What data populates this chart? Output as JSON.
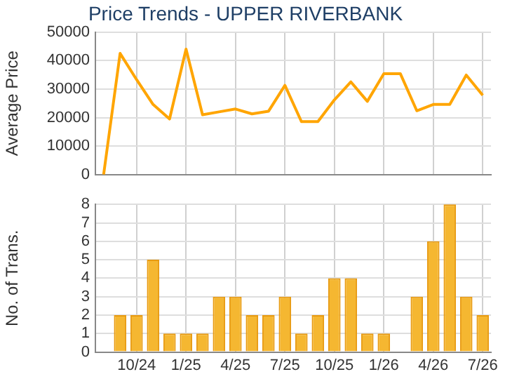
{
  "chart_data": [
    {
      "type": "line",
      "title": "Price Trends - UPPER RIVERBANK",
      "ylabel": "Average Price",
      "categories": [
        null,
        null,
        null,
        null,
        null,
        null,
        null,
        null,
        null,
        null,
        null,
        null,
        null,
        null,
        null,
        null,
        null,
        null,
        null,
        null,
        null,
        null,
        null,
        null
      ],
      "series": [
        {
          "color": "#ffa500",
          "values": [
            0,
            42500,
            33300,
            24600,
            19500,
            44000,
            21000,
            22000,
            23000,
            21300,
            22200,
            31300,
            18600,
            18600,
            26200,
            32500,
            25700,
            35400,
            35400,
            22400,
            24600,
            24600,
            34900,
            27800
          ]
        }
      ],
      "ylim": [
        0,
        50000
      ],
      "yticks": [
        0,
        10000,
        20000,
        30000,
        40000,
        50000
      ],
      "grid": true,
      "tick_labels": "y",
      "marker": "none"
    },
    {
      "type": "bar",
      "ylabel": "No. of Trans.",
      "categories": [
        null,
        null,
        "10/24",
        null,
        null,
        "1/25",
        null,
        null,
        "4/25",
        null,
        null,
        "7/25",
        null,
        null,
        "10/25",
        null,
        null,
        "1/26",
        null,
        null,
        "4/26",
        null,
        null,
        "7/26"
      ],
      "series": [
        {
          "color": "#f5b731",
          "values": [
            0,
            2,
            2,
            5,
            1,
            1,
            1,
            3,
            3,
            2,
            2,
            3,
            1,
            2,
            4,
            4,
            1,
            1,
            0,
            3,
            6,
            8,
            3,
            2
          ]
        }
      ],
      "ylim": [
        0,
        8
      ],
      "yticks": [
        0,
        1,
        2,
        3,
        4,
        5,
        6,
        7,
        8
      ],
      "grid": true
    }
  ]
}
